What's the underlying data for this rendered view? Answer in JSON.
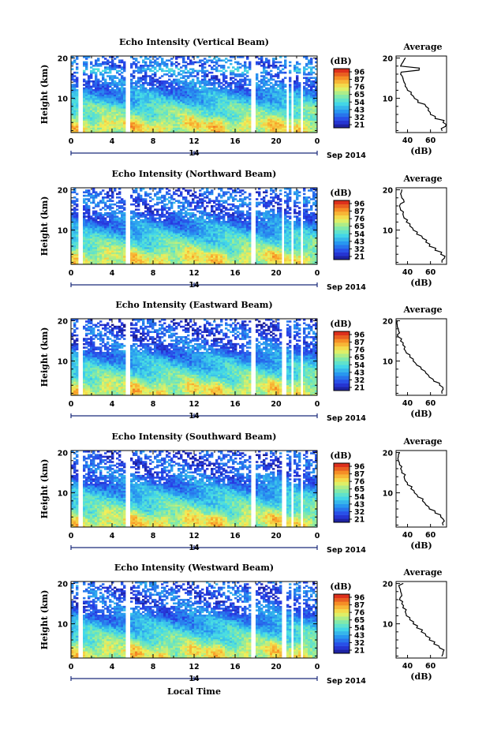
{
  "chart_data": [
    {
      "type": "heatmap",
      "title": "Echo Intensity (Vertical Beam)",
      "xlabel": "",
      "ylabel": "Height (km)",
      "x_ticks": [
        "0",
        "4",
        "8",
        "12",
        "16",
        "20",
        "0"
      ],
      "y_ticks": [
        "20",
        "10"
      ],
      "ylim": [
        1.5,
        20.5
      ],
      "xlim": [
        0,
        24
      ],
      "date_tick": "14",
      "date_label": "Sep 2014",
      "colorbar": {
        "unit": "(dB)",
        "labels": [
          "96",
          "87",
          "76",
          "65",
          "54",
          "43",
          "32",
          "21"
        ],
        "range": [
          21,
          96
        ]
      },
      "gaps_hours": [
        [
          0.7,
          1.1
        ],
        [
          5.4,
          5.7
        ],
        [
          17.6,
          18.0
        ],
        [
          20.9,
          21.2
        ],
        [
          21.5,
          21.7
        ],
        [
          22.3,
          22.5
        ]
      ],
      "average_profile": {
        "title": "Average",
        "xlabel": "(dB)",
        "x_ticks": [
          "40",
          "60"
        ],
        "xlim": [
          30,
          74
        ],
        "y_ticks": [
          "20",
          "10"
        ],
        "height_km": [
          2,
          3,
          4,
          5,
          6,
          7,
          8,
          9,
          10,
          11,
          12,
          13,
          14,
          15,
          16,
          17,
          18,
          19,
          20
        ],
        "db": [
          70,
          73,
          71,
          64,
          60,
          58,
          56,
          49,
          46,
          43,
          40,
          38,
          37,
          36,
          34,
          50,
          34,
          36,
          38
        ]
      }
    },
    {
      "type": "heatmap",
      "title": "Echo Intensity (Northward Beam)",
      "xlabel": "",
      "ylabel": "Height (km)",
      "x_ticks": [
        "0",
        "4",
        "8",
        "12",
        "16",
        "20",
        "0"
      ],
      "y_ticks": [
        "20",
        "10"
      ],
      "ylim": [
        1.5,
        20.5
      ],
      "xlim": [
        0,
        24
      ],
      "date_tick": "14",
      "date_label": "Sep 2014",
      "colorbar": {
        "unit": "(dB)",
        "labels": [
          "96",
          "87",
          "76",
          "65",
          "54",
          "43",
          "32",
          "21"
        ],
        "range": [
          21,
          96
        ]
      },
      "gaps_hours": [
        [
          0.7,
          1.1
        ],
        [
          5.4,
          5.7
        ],
        [
          17.6,
          17.9
        ],
        [
          20.6,
          20.8
        ],
        [
          21.5,
          21.7
        ],
        [
          22.3,
          22.5
        ]
      ],
      "average_profile": {
        "title": "Average",
        "xlabel": "(dB)",
        "x_ticks": [
          "40",
          "60"
        ],
        "xlim": [
          30,
          74
        ],
        "y_ticks": [
          "20",
          "10"
        ],
        "height_km": [
          2,
          3,
          4,
          5,
          6,
          7,
          8,
          9,
          10,
          11,
          12,
          13,
          14,
          15,
          16,
          17,
          18,
          19,
          20
        ],
        "db": [
          70,
          72,
          69,
          64,
          59,
          56,
          53,
          48,
          45,
          42,
          39,
          37,
          36,
          34,
          33,
          37,
          35,
          34,
          35
        ]
      }
    },
    {
      "type": "heatmap",
      "title": "Echo Intensity (Eastward Beam)",
      "xlabel": "",
      "ylabel": "Height (km)",
      "x_ticks": [
        "0",
        "4",
        "8",
        "12",
        "16",
        "20",
        "0"
      ],
      "y_ticks": [
        "20",
        "10"
      ],
      "ylim": [
        1.5,
        20.5
      ],
      "xlim": [
        0,
        24
      ],
      "date_tick": "14",
      "date_label": "Sep 2014",
      "colorbar": {
        "unit": "(dB)",
        "labels": [
          "96",
          "87",
          "76",
          "65",
          "54",
          "43",
          "32",
          "21"
        ],
        "range": [
          21,
          96
        ]
      },
      "gaps_hours": [
        [
          0.7,
          1.1
        ],
        [
          5.4,
          5.7
        ],
        [
          17.6,
          17.9
        ],
        [
          20.6,
          20.9
        ],
        [
          21.5,
          21.7
        ],
        [
          22.3,
          22.5
        ]
      ],
      "average_profile": {
        "title": "Average",
        "xlabel": "(dB)",
        "x_ticks": [
          "40",
          "60"
        ],
        "xlim": [
          30,
          74
        ],
        "y_ticks": [
          "20",
          "10"
        ],
        "height_km": [
          2,
          3,
          4,
          5,
          6,
          7,
          8,
          9,
          10,
          11,
          12,
          13,
          14,
          15,
          16,
          17,
          18,
          19,
          20
        ],
        "db": [
          70,
          71,
          68,
          63,
          59,
          56,
          52,
          48,
          45,
          42,
          39,
          37,
          36,
          34,
          32,
          33,
          32,
          31,
          31
        ]
      }
    },
    {
      "type": "heatmap",
      "title": "Echo Intensity (Southward Beam)",
      "xlabel": "",
      "ylabel": "Height (km)",
      "x_ticks": [
        "0",
        "4",
        "8",
        "12",
        "16",
        "20",
        "0"
      ],
      "y_ticks": [
        "20",
        "10"
      ],
      "ylim": [
        1.5,
        20.5
      ],
      "xlim": [
        0,
        24
      ],
      "date_tick": "14",
      "date_label": "Sep 2014",
      "colorbar": {
        "unit": "(dB)",
        "labels": [
          "96",
          "87",
          "76",
          "65",
          "54",
          "43",
          "32",
          "21"
        ],
        "range": [
          21,
          96
        ]
      },
      "gaps_hours": [
        [
          0.7,
          1.1
        ],
        [
          5.4,
          5.7
        ],
        [
          17.6,
          17.9
        ],
        [
          20.6,
          20.9
        ],
        [
          21.5,
          21.7
        ],
        [
          22.3,
          22.5
        ]
      ],
      "average_profile": {
        "title": "Average",
        "xlabel": "(dB)",
        "x_ticks": [
          "40",
          "60"
        ],
        "xlim": [
          30,
          74
        ],
        "y_ticks": [
          "20",
          "10"
        ],
        "height_km": [
          2,
          3,
          4,
          5,
          6,
          7,
          8,
          9,
          10,
          11,
          12,
          13,
          14,
          15,
          16,
          17,
          18,
          19,
          20
        ],
        "db": [
          71,
          72,
          69,
          64,
          59,
          56,
          53,
          49,
          46,
          43,
          40,
          38,
          37,
          35,
          34,
          33,
          32,
          32,
          33
        ]
      }
    },
    {
      "type": "heatmap",
      "title": "Echo Intensity (Westward Beam)",
      "xlabel": "Local Time",
      "ylabel": "Height (km)",
      "x_ticks": [
        "0",
        "4",
        "8",
        "12",
        "16",
        "20",
        "0"
      ],
      "y_ticks": [
        "20",
        "10"
      ],
      "ylim": [
        1.5,
        20.5
      ],
      "xlim": [
        0,
        24
      ],
      "date_tick": "14",
      "date_label": "Sep 2014",
      "colorbar": {
        "unit": "(dB)",
        "labels": [
          "96",
          "87",
          "76",
          "65",
          "54",
          "43",
          "32",
          "21"
        ],
        "range": [
          21,
          96
        ]
      },
      "gaps_hours": [
        [
          0.7,
          1.1
        ],
        [
          5.4,
          5.7
        ],
        [
          17.6,
          17.9
        ],
        [
          20.6,
          20.9
        ],
        [
          21.5,
          21.7
        ],
        [
          22.3,
          22.5
        ]
      ],
      "average_profile": {
        "title": "Average",
        "xlabel": "(dB)",
        "x_ticks": [
          "40",
          "60"
        ],
        "xlim": [
          30,
          74
        ],
        "y_ticks": [
          "20",
          "10"
        ],
        "height_km": [
          2,
          3,
          4,
          5,
          6,
          7,
          8,
          9,
          10,
          11,
          12,
          13,
          14,
          15,
          16,
          17,
          18,
          19,
          20
        ],
        "db": [
          70,
          71,
          68,
          63,
          59,
          56,
          52,
          48,
          45,
          42,
          39,
          38,
          36,
          35,
          33,
          35,
          34,
          33,
          36
        ]
      }
    }
  ]
}
